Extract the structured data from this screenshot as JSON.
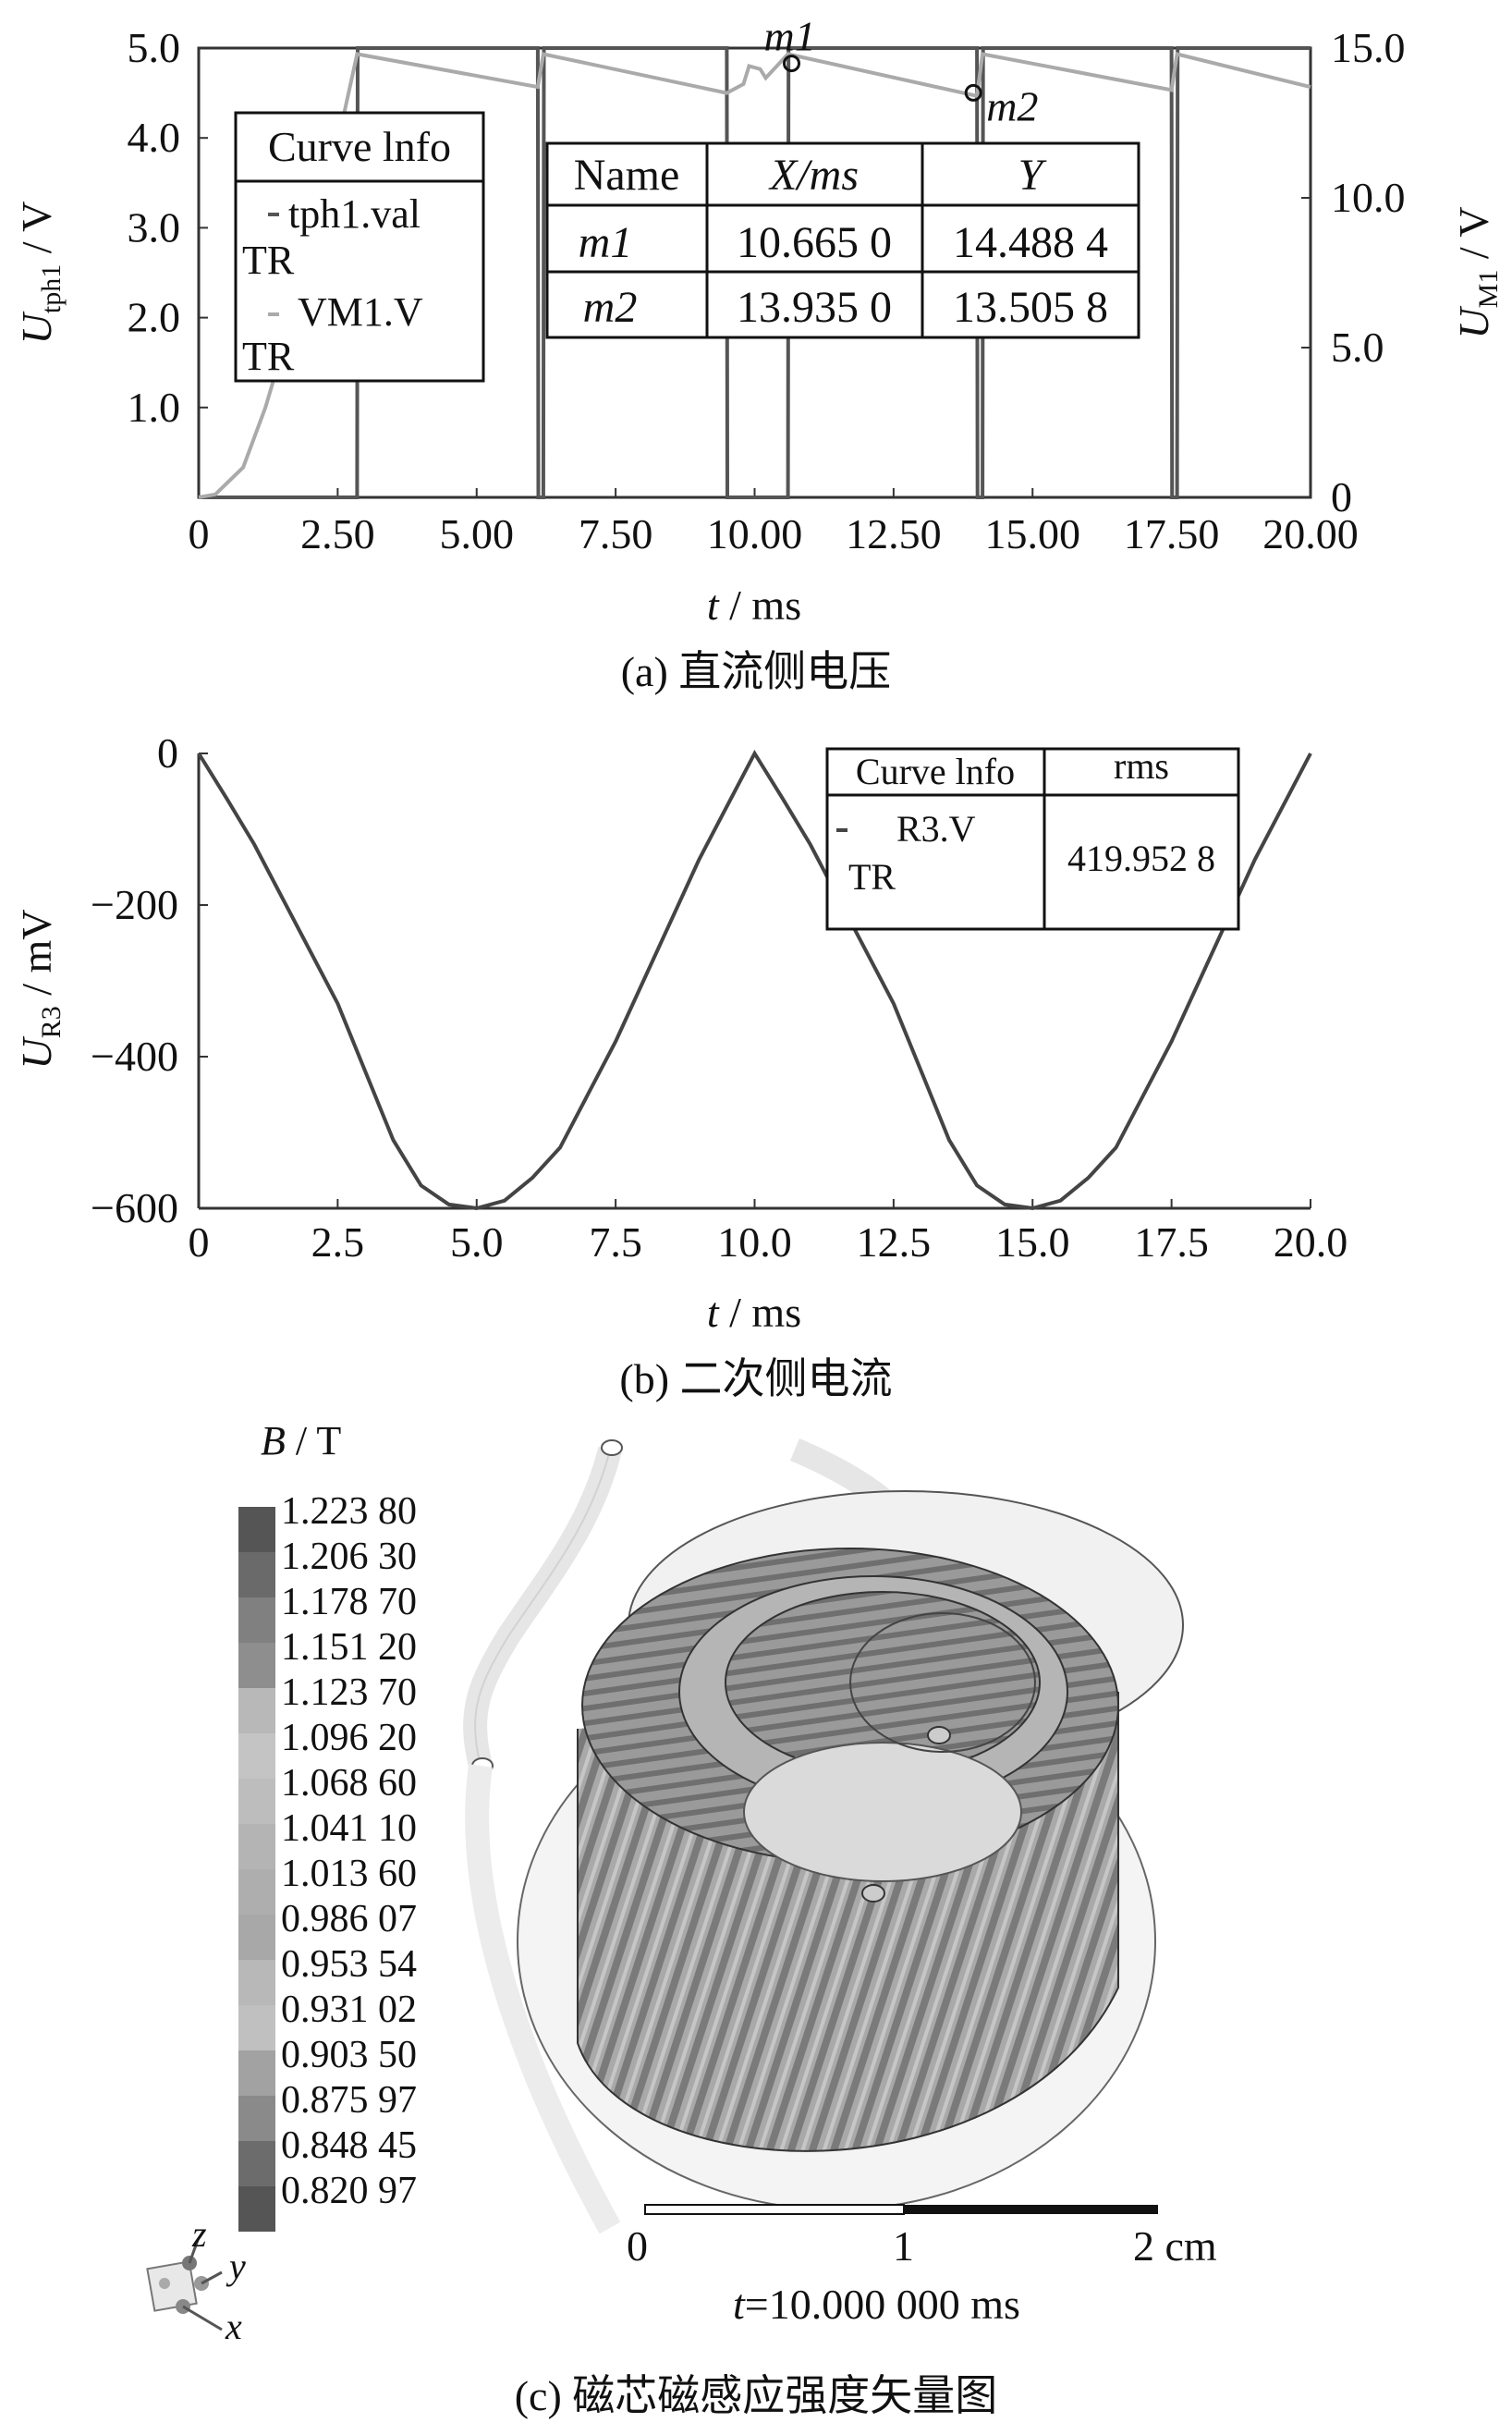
{
  "chart_data": [
    {
      "type": "line",
      "panel": "(a)",
      "caption": "(a)  直流侧电压",
      "xlabel_var": "t",
      "xlabel_unit": " / ms",
      "ylabel_left_var": "U",
      "ylabel_left_sub": "tph1",
      "ylabel_left_unit": " / V",
      "ylabel_right_var": "U",
      "ylabel_right_sub": "M1",
      "ylabel_right_unit": " / V",
      "xlim": [
        0,
        20
      ],
      "ylim_left": [
        0,
        5
      ],
      "ylim_right": [
        0,
        15
      ],
      "x_ticks": [
        "0",
        "2.50",
        "5.00",
        "7.50",
        "10.00",
        "12.50",
        "15.00",
        "17.50",
        "20.00"
      ],
      "y_ticks_left": [
        "1.0",
        "2.0",
        "3.0",
        "4.0",
        "5.0"
      ],
      "y_ticks_right": [
        "0",
        "5.0",
        "10.0",
        "15.0"
      ],
      "legend": {
        "header": "Curve lnfo",
        "entries": [
          {
            "line1": "tph1.val",
            "line2": "TR",
            "color": "#555555"
          },
          {
            "line1": "VM1.V",
            "line2": "TR",
            "color": "#aaaaaa"
          }
        ]
      },
      "marker_table": {
        "headers": [
          "Name",
          "X/ms",
          "Y"
        ],
        "rows": [
          [
            "m1",
            "10.665 0",
            "14.488 4"
          ],
          [
            "m2",
            "13.935 0",
            "13.505 8"
          ]
        ]
      },
      "markers": [
        {
          "name": "m1",
          "x": 10.665,
          "y": 14.4884
        },
        {
          "name": "m2",
          "x": 13.935,
          "y": 13.5058
        }
      ],
      "series": [
        {
          "name": "tph1.val",
          "axis": "left",
          "color": "#555555",
          "x": [
            0,
            2.85,
            2.86,
            6.1,
            6.11,
            6.2,
            6.21,
            9.5,
            9.51,
            10.6,
            10.61,
            14.0,
            14.01,
            14.1,
            14.11,
            17.5,
            17.51,
            17.6,
            17.61,
            20.0
          ],
          "y": [
            0,
            0,
            5,
            5,
            0,
            0,
            5,
            5,
            0,
            0,
            5,
            5,
            0,
            0,
            5,
            5,
            0,
            0,
            5,
            5
          ]
        },
        {
          "name": "VM1.V",
          "axis": "right",
          "color": "#aaaaaa",
          "x": [
            0,
            0.3,
            0.8,
            1.2,
            1.6,
            2.0,
            2.4,
            2.85,
            6.1,
            6.2,
            9.5,
            9.8,
            9.9,
            10.1,
            10.2,
            10.4,
            10.6,
            14.0,
            14.1,
            17.5,
            17.6,
            20.0
          ],
          "y": [
            0,
            0.1,
            1.0,
            3.0,
            5.5,
            8.0,
            11.0,
            14.8,
            13.7,
            14.8,
            13.5,
            13.8,
            14.4,
            14.3,
            14.0,
            14.4,
            14.8,
            13.4,
            14.8,
            13.6,
            14.8,
            13.7
          ]
        }
      ]
    },
    {
      "type": "line",
      "panel": "(b)",
      "caption": "(b)  二次侧电流",
      "xlabel_var": "t",
      "xlabel_unit": " / ms",
      "ylabel_var": "U",
      "ylabel_sub": "R3",
      "ylabel_unit": " / mV",
      "xlim": [
        0,
        20
      ],
      "ylim": [
        -600,
        0
      ],
      "x_ticks": [
        "0",
        "2.5",
        "5.0",
        "7.5",
        "10.0",
        "12.5",
        "15.0",
        "17.5",
        "20.0"
      ],
      "y_ticks": [
        "0",
        "−200",
        "−400",
        "−600"
      ],
      "legend_table": {
        "headers": [
          "Curve lnfo",
          "rms"
        ],
        "entry_line1": "R3.V",
        "entry_line2": "TR",
        "rms_value": "419.952 8"
      },
      "series": [
        {
          "name": "R3.V",
          "color": "#444444",
          "x": [
            0,
            0.5,
            1,
            1.5,
            2,
            2.5,
            3,
            3.5,
            4,
            4.5,
            5,
            5.5,
            6,
            6.5,
            7,
            7.5,
            8,
            8.5,
            9,
            9.5,
            10,
            10.5,
            11,
            11.5,
            12,
            12.5,
            13,
            13.5,
            14,
            14.5,
            15,
            15.5,
            16,
            16.5,
            17,
            17.5,
            18,
            18.5,
            19,
            19.5,
            20
          ],
          "y": [
            0,
            -59,
            -120,
            -190,
            -260,
            -330,
            -420,
            -510,
            -570,
            -595,
            -600,
            -590,
            -560,
            -520,
            -450,
            -380,
            -300,
            -220,
            -140,
            -70,
            0,
            -59,
            -120,
            -190,
            -260,
            -330,
            -420,
            -510,
            -570,
            -595,
            -600,
            -590,
            -560,
            -520,
            -450,
            -380,
            -300,
            -220,
            -140,
            -70,
            0
          ]
        }
      ]
    },
    {
      "type": "heatmap",
      "panel": "(c)",
      "caption": "(c)  磁芯磁感应强度矢量图",
      "colorbar_title_var": "B",
      "colorbar_title_unit": " / T",
      "colorbar_values": [
        "1.223 80",
        "1.206 30",
        "1.178 70",
        "1.151 20",
        "1.123 70",
        "1.096 20",
        "1.068 60",
        "1.041 10",
        "1.013 60",
        "0.986 07",
        "0.953 54",
        "0.931 02",
        "0.903 50",
        "0.875 97",
        "0.848 45",
        "0.820 97"
      ],
      "colorbar_colors": [
        "#555555",
        "#6a6a6a",
        "#808080",
        "#8e8e8e",
        "#b8b8b8",
        "#c4c4c4",
        "#bdbdbd",
        "#b4b4b4",
        "#aeaeae",
        "#a8a8a8",
        "#b8b8b8",
        "#c0c0c0",
        "#a2a2a2",
        "#8a8a8a",
        "#6c6c6c",
        "#555555"
      ],
      "scale_labels": [
        "0",
        "1",
        "2 cm"
      ],
      "time_label_var": "t",
      "time_label_value": "=10.000 000 ms",
      "axis_labels": [
        "z",
        "y",
        "x"
      ]
    }
  ]
}
